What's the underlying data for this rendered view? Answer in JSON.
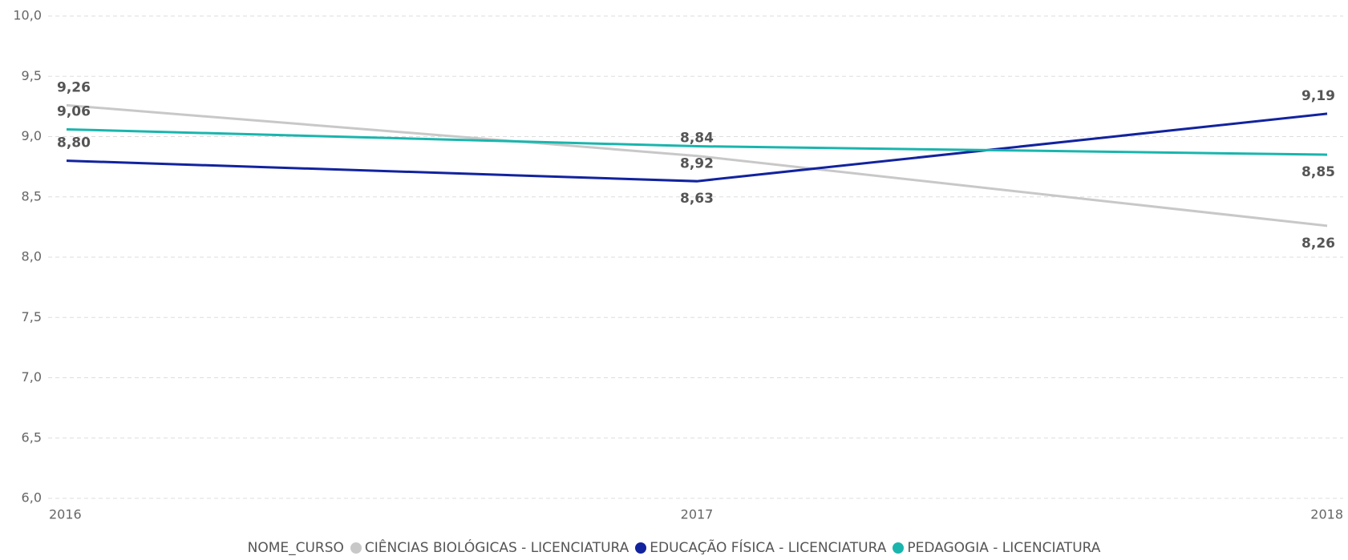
{
  "chart_data": {
    "type": "line",
    "categories": [
      "2016",
      "2017",
      "2018"
    ],
    "legend_title": "NOME_CURSO",
    "series": [
      {
        "name": "CIÊNCIAS BIOLÓGICAS - LICENCIATURA",
        "color": "#c8c8c8",
        "values": [
          9.26,
          8.84,
          8.26
        ],
        "value_labels": [
          "9,26",
          "8,84",
          "8,26"
        ]
      },
      {
        "name": "EDUCAÇÃO FÍSICA - LICENCIATURA",
        "color": "#12239e",
        "values": [
          8.8,
          8.63,
          9.19
        ],
        "value_labels": [
          "8,80",
          "8,63",
          "9,19"
        ]
      },
      {
        "name": "PEDAGOGIA - LICENCIATURA",
        "color": "#1ab5ad",
        "values": [
          9.06,
          8.92,
          8.85
        ],
        "value_labels": [
          "9,06",
          "8,92",
          "8,85"
        ]
      }
    ],
    "ylim": [
      6.0,
      10.0
    ],
    "yticks": [
      {
        "value": 6.0,
        "label": "6,0"
      },
      {
        "value": 6.5,
        "label": "6,5"
      },
      {
        "value": 7.0,
        "label": "7,0"
      },
      {
        "value": 7.5,
        "label": "7,5"
      },
      {
        "value": 8.0,
        "label": "8,0"
      },
      {
        "value": 8.5,
        "label": "8,5"
      },
      {
        "value": 9.0,
        "label": "9,0"
      },
      {
        "value": 9.5,
        "label": "9,5"
      },
      {
        "value": 10.0,
        "label": "10,0"
      }
    ],
    "grid": true
  }
}
